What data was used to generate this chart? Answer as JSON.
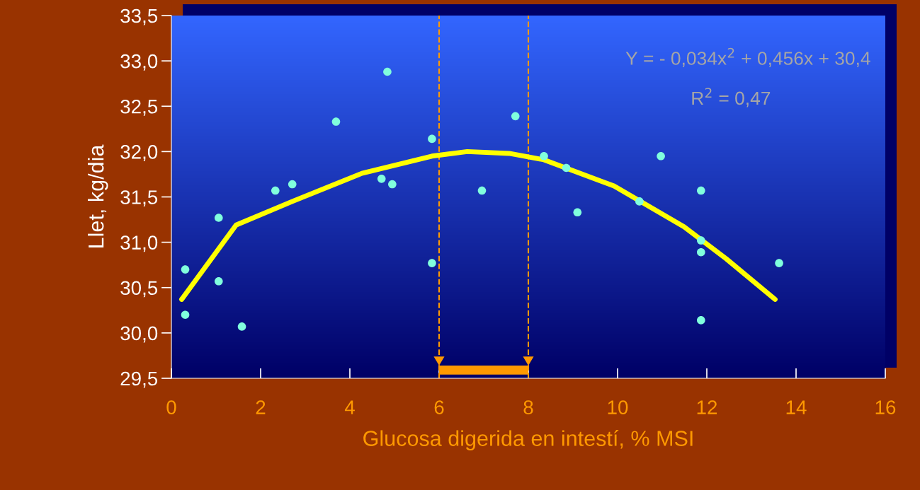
{
  "chart_data": {
    "type": "scatter",
    "xlabel": "Glucosa digerida en intestí, % MSI",
    "ylabel": "Llet, kg/dia",
    "annotations": [
      "Y = - 0,034x$^{2}$ + 0,456x + 30,4",
      "R$^{2}$ = 0,47"
    ],
    "xlim": [
      0,
      16
    ],
    "xticks": [
      0,
      2,
      4,
      6,
      8,
      10,
      12,
      14,
      16
    ],
    "ylim": [
      29.5,
      33.5
    ],
    "yticks": [
      {
        "value": 29.5,
        "label": "29,5"
      },
      {
        "value": 30.0,
        "label": "30,0"
      },
      {
        "value": 30.5,
        "label": "30,5"
      },
      {
        "value": 31.0,
        "label": "31,0"
      },
      {
        "value": 31.5,
        "label": "31,5"
      },
      {
        "value": 32.0,
        "label": "32,0"
      },
      {
        "value": 32.5,
        "label": "32,5"
      },
      {
        "value": 33.0,
        "label": "33,0"
      },
      {
        "value": 33.5,
        "label": "33,5"
      }
    ],
    "grid": false,
    "legend": false,
    "marker": "circle",
    "series": [
      {
        "color": "#80ffdd",
        "x": [
          0.31,
          0.31,
          1.06,
          1.06,
          1.58,
          2.33,
          2.71,
          3.69,
          4.71,
          4.84,
          4.95,
          5.84,
          5.84,
          6.96,
          7.71,
          8.35,
          8.85,
          9.1,
          10.49,
          10.97,
          11.87,
          11.87,
          11.87,
          11.87,
          13.62
        ],
        "values": [
          30.7,
          30.2,
          31.27,
          30.57,
          30.07,
          31.57,
          31.64,
          32.33,
          31.7,
          32.88,
          31.64,
          32.14,
          30.77,
          31.57,
          32.39,
          31.95,
          31.82,
          31.33,
          31.45,
          31.95,
          31.57,
          31.02,
          30.89,
          30.14,
          30.77
        ]
      },
      {
        "type": "line",
        "color": "#ffff00",
        "marker": "none",
        "x": [
          0.23,
          1.45,
          2.71,
          4.27,
          5.84,
          6.63,
          7.57,
          8.35,
          9.92,
          11.49,
          12.43,
          13.53
        ],
        "values": [
          30.37,
          31.19,
          31.45,
          31.76,
          31.95,
          32.0,
          31.98,
          31.91,
          31.62,
          31.17,
          30.82,
          30.37
        ]
      }
    ],
    "ref_lines": [
      {
        "axis": "x",
        "value": 6,
        "color": "#ff9900",
        "line_style": "dashed"
      },
      {
        "axis": "x",
        "value": 8,
        "color": "#ff9900",
        "line_style": "dashed"
      }
    ]
  }
}
